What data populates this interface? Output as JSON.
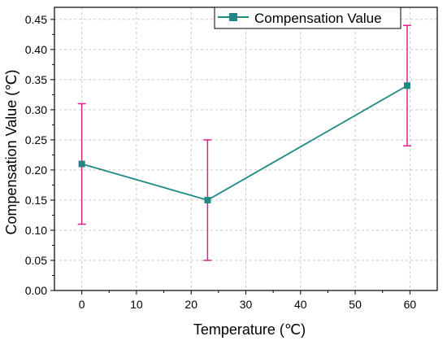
{
  "chart_data": {
    "type": "line",
    "title": "",
    "xlabel": "Temperature (℃)",
    "ylabel": "Compensation Value (℃)",
    "xlim": [
      -5,
      65
    ],
    "ylim": [
      0,
      0.47
    ],
    "x_ticks": [
      "0",
      "10",
      "20",
      "30",
      "40",
      "50",
      "60"
    ],
    "y_ticks": [
      "0.00",
      "0.05",
      "0.10",
      "0.15",
      "0.20",
      "0.25",
      "0.30",
      "0.35",
      "0.40",
      "0.45"
    ],
    "grid": true,
    "legend_position": "top-right",
    "series": [
      {
        "name": "Compensation Value",
        "color": "#1f8a84",
        "marker": "square",
        "error_bar_color": "#e0208a",
        "points": [
          {
            "x": 0,
            "y": 0.21,
            "err_low": 0.11,
            "err_high": 0.31
          },
          {
            "x": 23,
            "y": 0.15,
            "err_low": 0.05,
            "err_high": 0.25
          },
          {
            "x": 59.5,
            "y": 0.34,
            "err_low": 0.24,
            "err_high": 0.44
          }
        ]
      }
    ]
  }
}
